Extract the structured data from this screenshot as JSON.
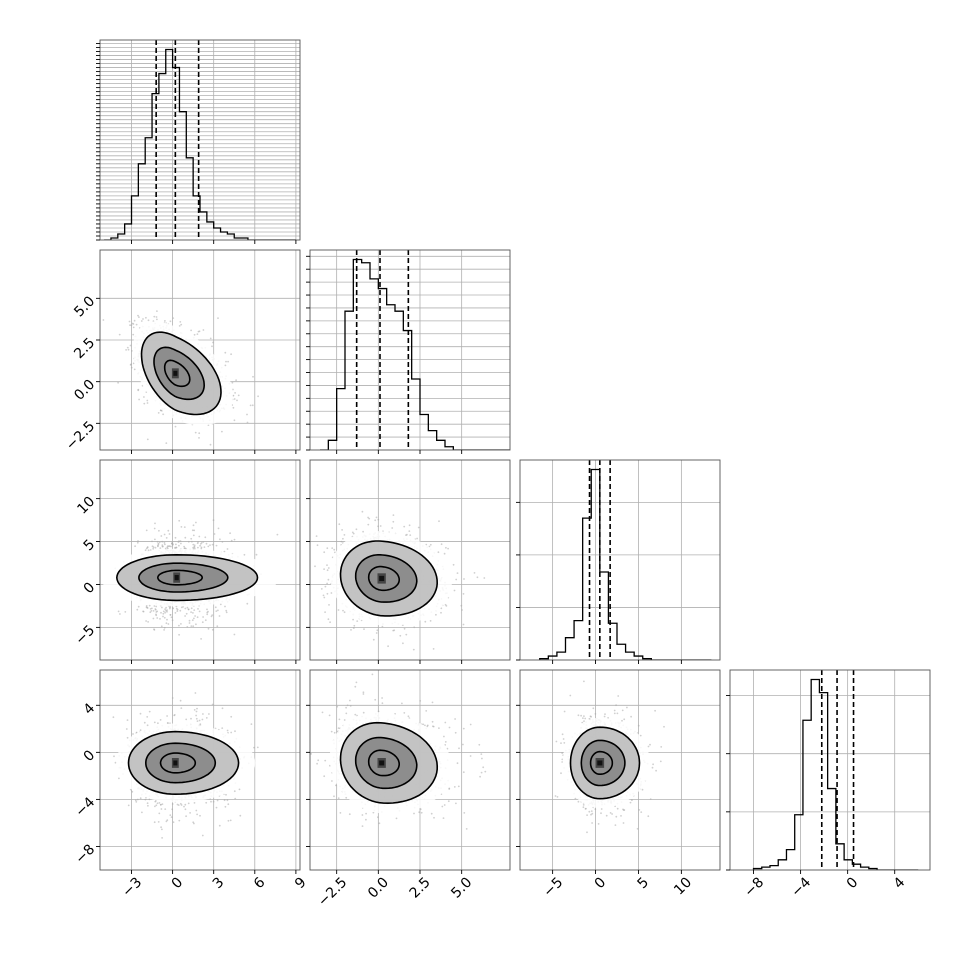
{
  "chart_data": {
    "type": "corner",
    "title": "",
    "grid": true,
    "colors": {
      "line": "#000000",
      "grid": "#b0b0b0",
      "scatter": "#aaaaaa",
      "fill_light": "#bdbdbd",
      "fill_mid": "#8a8a8a",
      "fill_dark": "#444444"
    },
    "params": [
      {
        "range": [
          -5.3,
          9.3
        ],
        "ticks": [
          -3,
          0,
          3,
          6,
          9
        ],
        "tick_labels": [
          "−3",
          "0",
          "3",
          "6",
          "9"
        ],
        "quantiles": [
          -1.2,
          0.2,
          1.9
        ],
        "hist": {
          "start": -5.0,
          "width": 0.5,
          "counts": [
            0,
            1,
            3,
            8,
            22,
            38,
            51,
            73,
            83,
            95,
            86,
            64,
            41,
            22,
            14,
            9,
            6,
            4,
            3,
            1,
            1,
            0,
            0,
            0,
            0,
            0,
            0,
            0
          ]
        },
        "mode": [
          0.1,
          0.8
        ]
      },
      {
        "range": [
          -4.1,
          7.9
        ],
        "ticks": [
          -2.5,
          0.0,
          2.5,
          5.0
        ],
        "tick_labels": [
          "−2.5",
          "0.0",
          "2.5",
          "5.0"
        ],
        "quantiles": [
          -1.3,
          0.1,
          1.8
        ],
        "hist": {
          "start": -3.5,
          "width": 0.5,
          "counts": [
            0,
            3,
            19,
            43,
            59,
            58,
            53,
            50,
            45,
            43,
            37,
            22,
            11,
            6,
            3,
            1,
            0,
            0,
            0,
            0,
            0,
            0,
            0,
            0
          ]
        },
        "mode": [
          -0.6,
          0.6
        ]
      },
      {
        "range": [
          -8.8,
          14.5
        ],
        "ticks": [
          -5,
          0,
          5,
          10
        ],
        "tick_labels": [
          "−5",
          "0",
          "5",
          "10"
        ],
        "quantiles": [
          -0.7,
          0.5,
          1.7
        ],
        "hist": {
          "start": -6.5,
          "width": 1.0,
          "counts": [
            1,
            3,
            6,
            17,
            30,
            108,
            145,
            67,
            28,
            12,
            6,
            3,
            1,
            0,
            0,
            0,
            0,
            0,
            0,
            0
          ]
        },
        "mode": [
          0.5,
          0.6
        ]
      },
      {
        "range": [
          -10.0,
          7.0
        ],
        "ticks": [
          -8,
          -4,
          0,
          4
        ],
        "tick_labels": [
          "−8",
          "−4",
          "0",
          "4"
        ],
        "quantiles": [
          -2.2,
          -0.9,
          0.5
        ],
        "hist": {
          "start": -8.0,
          "width": 0.7,
          "counts": [
            1,
            2,
            3,
            7,
            14,
            38,
            103,
            131,
            122,
            56,
            18,
            7,
            4,
            2,
            1,
            0,
            0,
            0,
            0,
            0
          ]
        },
        "mode": [
          -0.9,
          0.8
        ]
      }
    ],
    "pairs": [
      {
        "x": 0,
        "y": 1,
        "center": [
          0.2,
          0.5
        ],
        "spread": [
          1.3,
          1.3
        ],
        "corr": -0.45,
        "kde_radii": [
          0.6,
          1.2,
          1.9,
          2.4
        ]
      },
      {
        "x": 0,
        "y": 2,
        "center": [
          0.3,
          0.8
        ],
        "spread": [
          1.4,
          2.3
        ],
        "corr": 0.0,
        "kde_radii": [
          0.6,
          1.2,
          1.9,
          2.4
        ]
      },
      {
        "x": 1,
        "y": 2,
        "center": [
          0.2,
          0.7
        ],
        "spread": [
          1.3,
          2.3
        ],
        "corr": -0.1,
        "kde_radii": [
          0.6,
          1.2,
          1.9,
          2.4
        ]
      },
      {
        "x": 0,
        "y": 3,
        "center": [
          0.2,
          -0.9
        ],
        "spread": [
          1.4,
          1.8
        ],
        "corr": 0.0,
        "kde_radii": [
          0.6,
          1.2,
          1.9,
          2.4
        ]
      },
      {
        "x": 1,
        "y": 3,
        "center": [
          0.2,
          -0.9
        ],
        "spread": [
          1.3,
          1.8
        ],
        "corr": -0.1,
        "kde_radii": [
          0.6,
          1.2,
          1.9,
          2.4
        ]
      },
      {
        "x": 2,
        "y": 3,
        "center": [
          0.5,
          -0.9
        ],
        "spread": [
          1.6,
          1.8
        ],
        "corr": 0.0,
        "kde_radii": [
          0.6,
          1.2,
          1.9,
          2.4
        ]
      }
    ]
  }
}
